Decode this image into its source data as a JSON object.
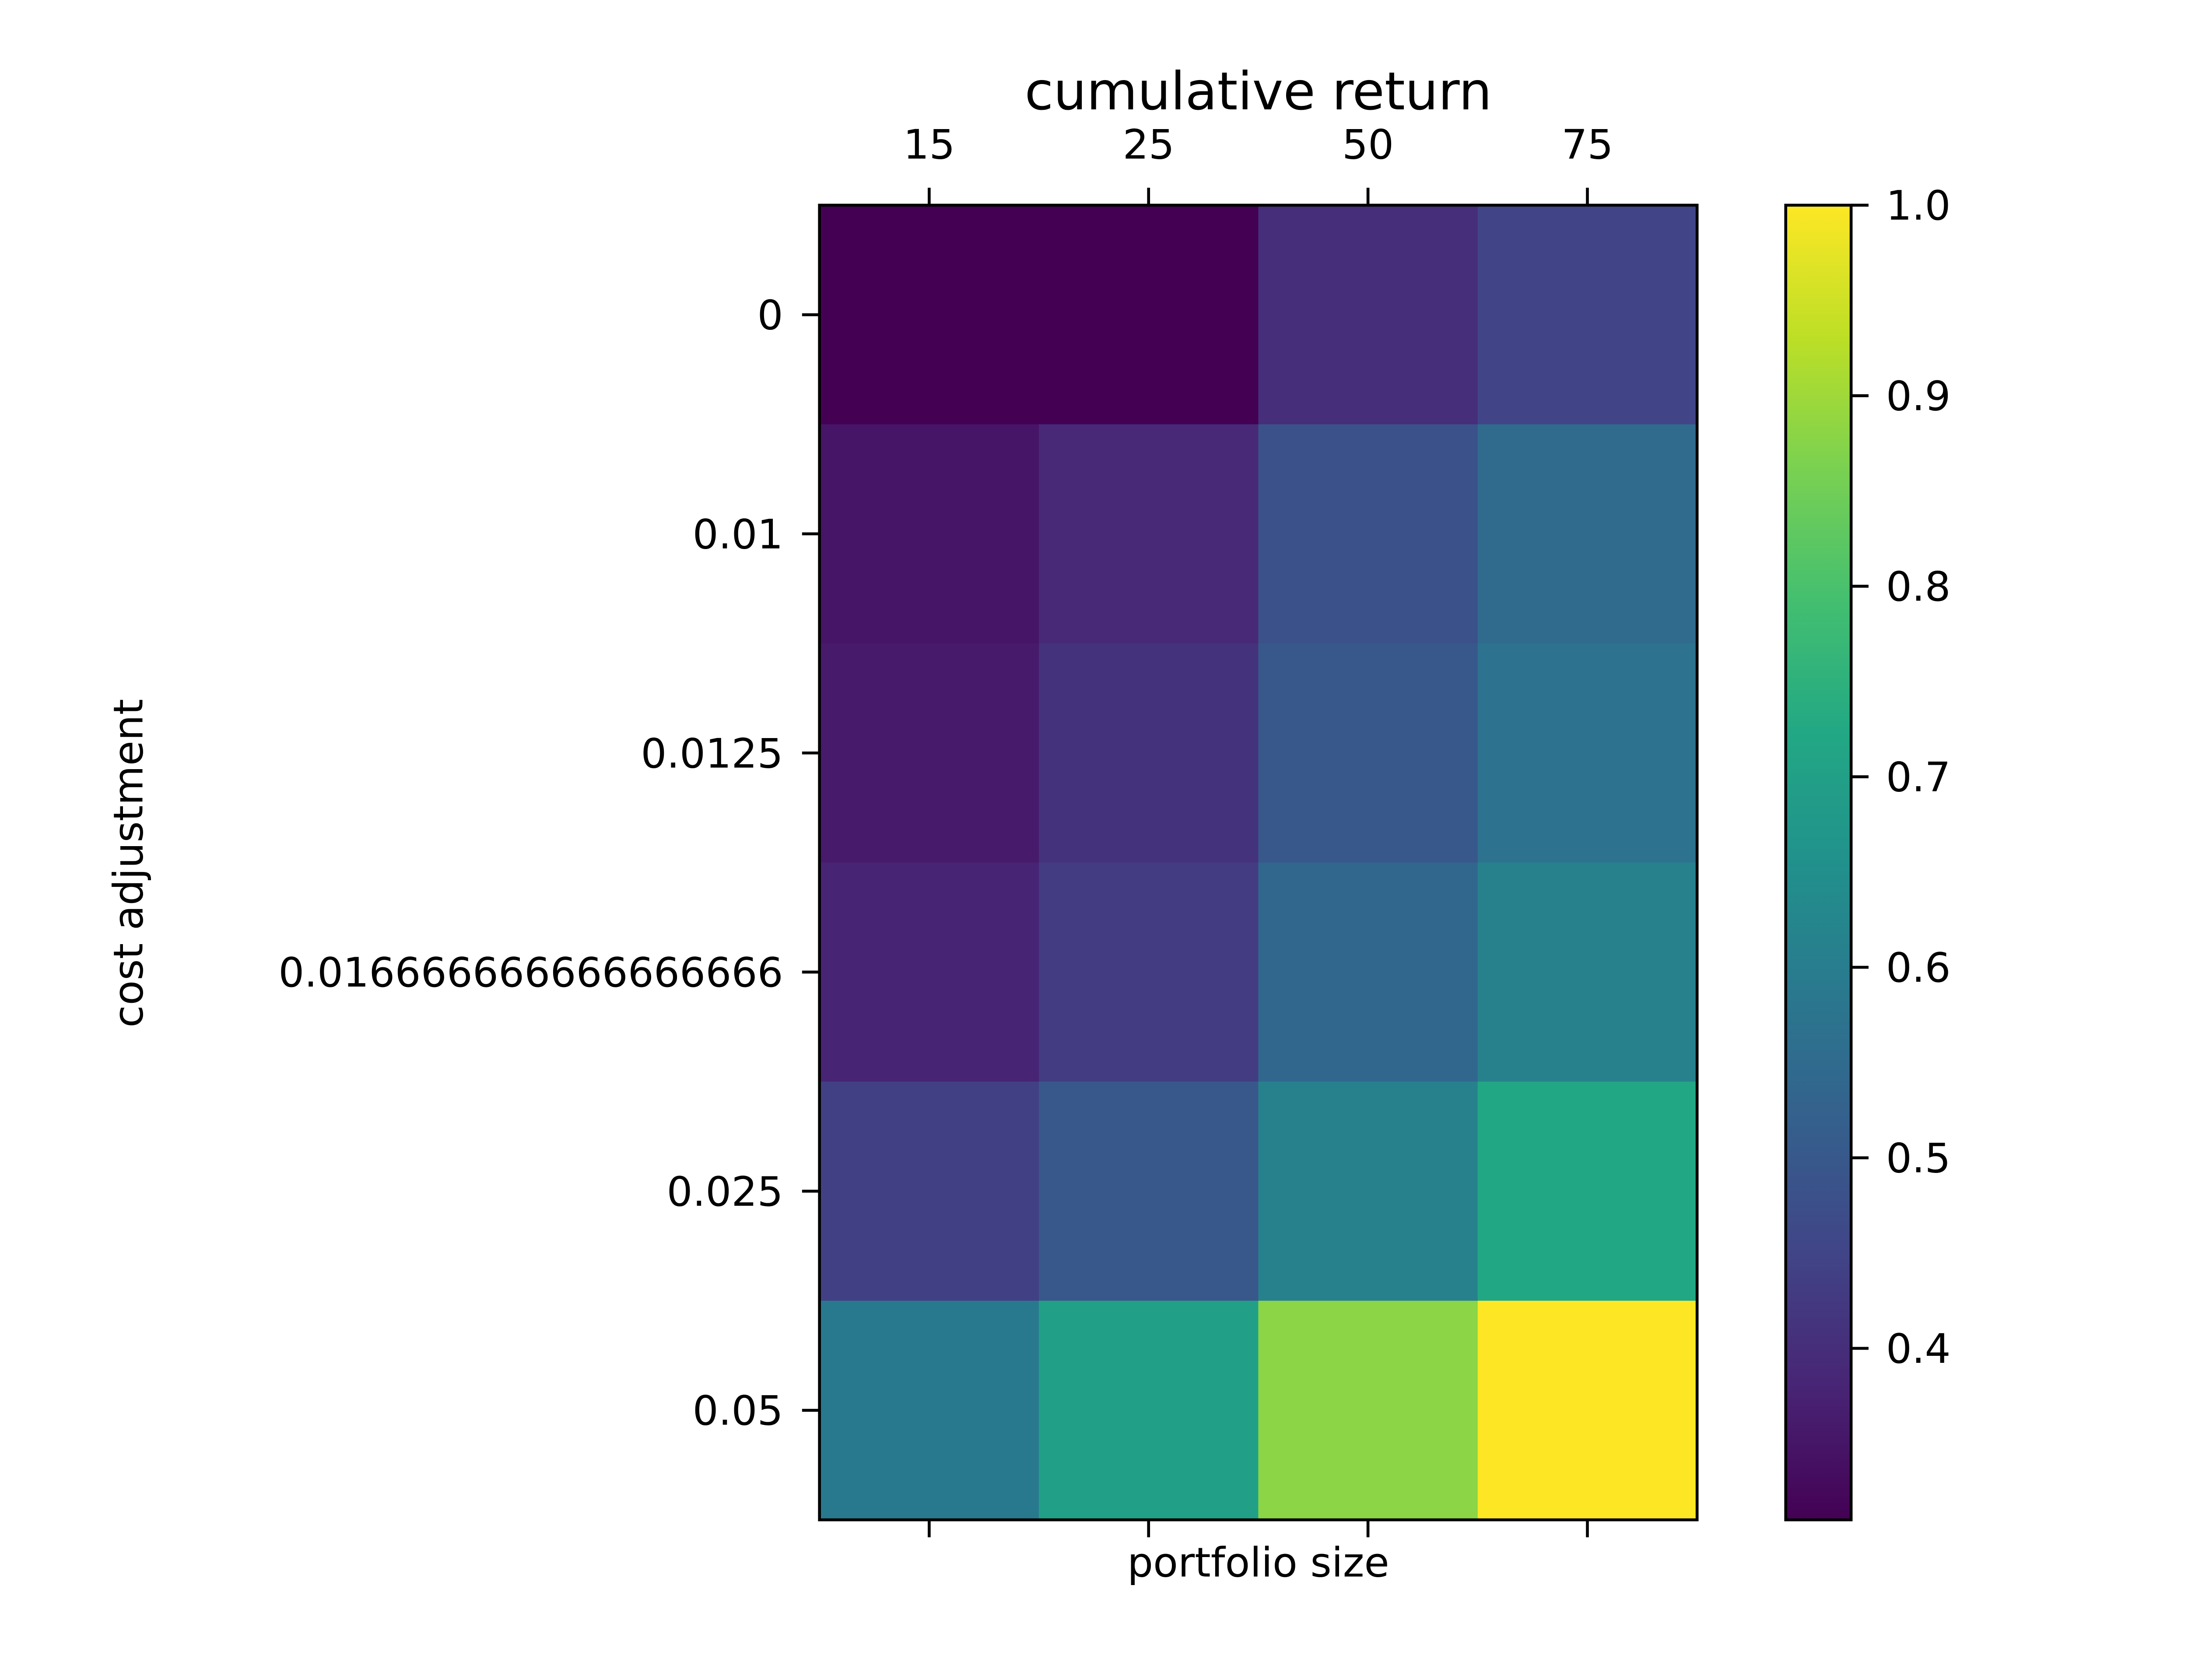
{
  "chart_data": {
    "type": "heatmap",
    "title": "cumulative return",
    "xlabel": "portfolio size",
    "ylabel": "cost adjustment",
    "x_categories": [
      "15",
      "25",
      "50",
      "75"
    ],
    "y_categories": [
      "0",
      "0.01",
      "0.0125",
      "0.016666666666666666",
      "0.025",
      "0.05"
    ],
    "values": [
      [
        0.31,
        0.31,
        0.4,
        0.45
      ],
      [
        0.35,
        0.39,
        0.48,
        0.55
      ],
      [
        0.36,
        0.41,
        0.5,
        0.57
      ],
      [
        0.38,
        0.43,
        0.54,
        0.61
      ],
      [
        0.44,
        0.5,
        0.61,
        0.72
      ],
      [
        0.59,
        0.7,
        0.88,
        1.0
      ]
    ],
    "colormap": "viridis",
    "value_range": [
      0.31,
      1.0
    ],
    "colorbar_ticks": [
      "0.4",
      "0.5",
      "0.6",
      "0.7",
      "0.8",
      "0.9",
      "1.0"
    ],
    "x_tick_position": "top",
    "grid": false
  }
}
